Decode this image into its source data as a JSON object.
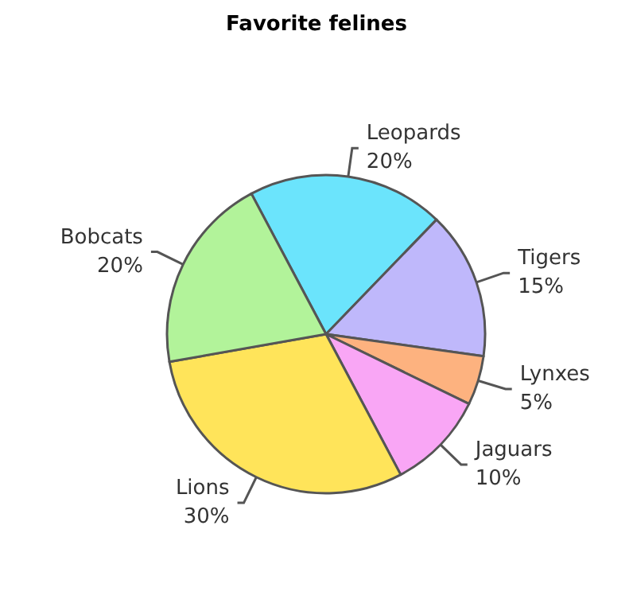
{
  "chart_data": {
    "type": "pie",
    "title": "Favorite felines",
    "categories": [
      "Leopards",
      "Tigers",
      "Lynxes",
      "Jaguars",
      "Lions",
      "Bobcats"
    ],
    "values": [
      20,
      15,
      5,
      10,
      30,
      20
    ],
    "value_labels": [
      "20%",
      "15%",
      "5%",
      "10%",
      "30%",
      "20%"
    ],
    "colors": [
      "#6be4fc",
      "#bfb8fb",
      "#fdb27f",
      "#f9a6f5",
      "#ffe45a",
      "#b2f39a"
    ],
    "legend": false
  }
}
